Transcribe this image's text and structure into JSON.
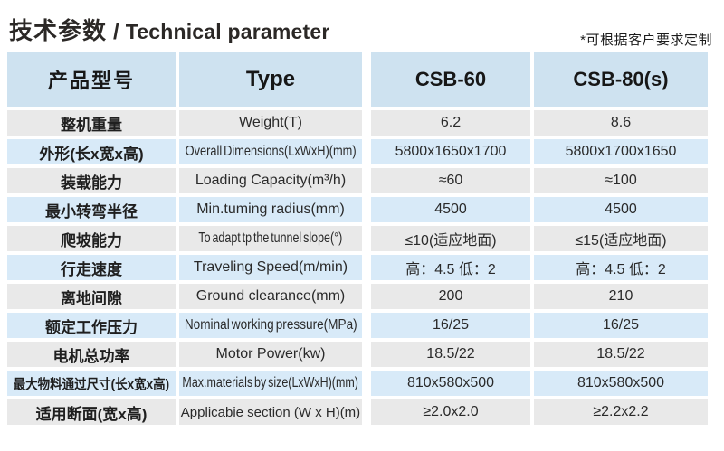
{
  "title": {
    "cn": "技术参数",
    "sep": "/",
    "en": "Technical parameter"
  },
  "note": "*可根据客户要求定制",
  "colors": {
    "header_blue": "#cee2f0",
    "row_blue": "#d8eaf8",
    "row_gray": "#e9e9e9",
    "text": "#2a2a2a"
  },
  "table": {
    "header": {
      "product_model": "产品型号",
      "type": "Type",
      "model_a": "CSB-60",
      "model_b": "CSB-80(s)"
    },
    "rows": [
      {
        "cn": "整机重量",
        "en": "Weight(T)",
        "a": "6.2",
        "b": "8.6"
      },
      {
        "cn": "外形(长x宽x高)",
        "en": "Overall Dimensions(LxWxH)(mm)",
        "a": "5800x1650x1700",
        "b": "5800x1700x1650"
      },
      {
        "cn": "装载能力",
        "en": "Loading Capacity(m³/h)",
        "a": "≈60",
        "b": "≈100"
      },
      {
        "cn": "最小转弯半径",
        "en": "Min.tuming radius(mm)",
        "a": "4500",
        "b": "4500"
      },
      {
        "cn": "爬坡能力",
        "en": "To adapt tp the tunnel slope(°)",
        "a": "≤10(适应地面)",
        "b": "≤15(适应地面)"
      },
      {
        "cn": "行走速度",
        "en": "Traveling Speed(m/min)",
        "a": "高：4.5 低：2",
        "b": "高：4.5 低：2"
      },
      {
        "cn": "离地间隙",
        "en": "Ground clearance(mm)",
        "a": "200",
        "b": "210"
      },
      {
        "cn": "额定工作压力",
        "en": "Nominal working pressure(MPa)",
        "a": "16/25",
        "b": "16/25"
      },
      {
        "cn": "电机总功率",
        "en": "Motor Power(kw)",
        "a": "18.5/22",
        "b": "18.5/22"
      },
      {
        "cn": "最大物料通过尺寸(长x宽x高)",
        "en": "Max.materials by size(LxWxH)(mm)",
        "a": "810x580x500",
        "b": "810x580x500"
      },
      {
        "cn": "适用断面(宽x高)",
        "en": "Applicabie section (W x H)(m)",
        "a": "≥2.0x2.0",
        "b": "≥2.2x2.2"
      }
    ]
  }
}
